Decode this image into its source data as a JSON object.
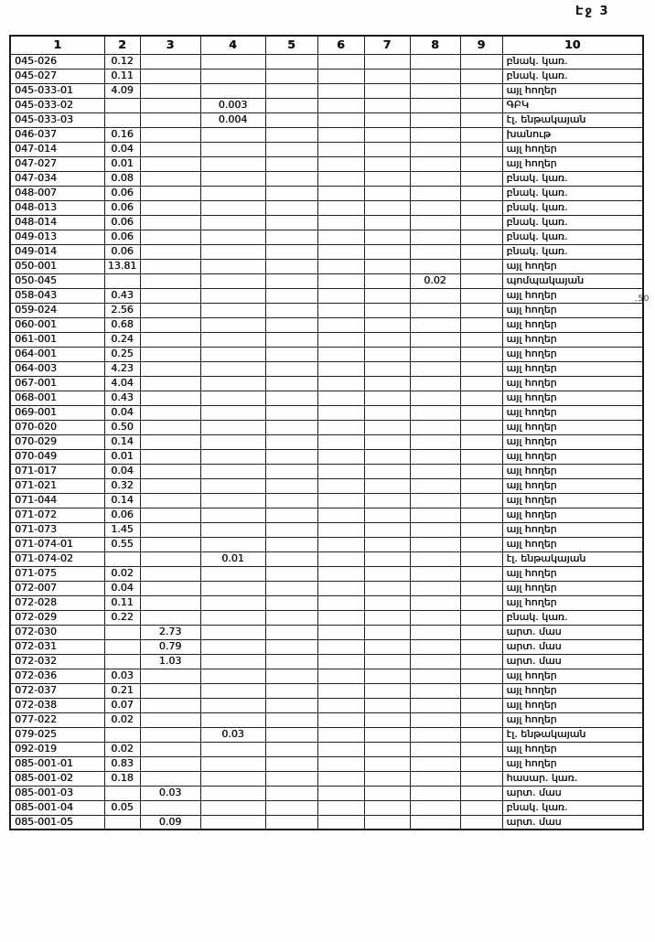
{
  "page": {
    "header": "Էջ 3",
    "margin_note": ".50"
  },
  "table": {
    "columns": [
      "1",
      "2",
      "3",
      "4",
      "5",
      "6",
      "7",
      "8",
      "9",
      "10"
    ],
    "rows": [
      [
        "045-026",
        "0.12",
        "",
        "",
        "",
        "",
        "",
        "",
        "",
        "բնակ. կառ."
      ],
      [
        "045-027",
        "0.11",
        "",
        "",
        "",
        "",
        "",
        "",
        "",
        "բնակ. կառ."
      ],
      [
        "045-033-01",
        "4.09",
        "",
        "",
        "",
        "",
        "",
        "",
        "",
        "այլ հողեր"
      ],
      [
        "045-033-02",
        "",
        "",
        "0.003",
        "",
        "",
        "",
        "",
        "",
        "ԳԲԿ"
      ],
      [
        "045-033-03",
        "",
        "",
        "0.004",
        "",
        "",
        "",
        "",
        "",
        "էլ. ենթակայան"
      ],
      [
        "046-037",
        "0.16",
        "",
        "",
        "",
        "",
        "",
        "",
        "",
        "խանութ"
      ],
      [
        "047-014",
        "0.04",
        "",
        "",
        "",
        "",
        "",
        "",
        "",
        "այլ հողեր"
      ],
      [
        "047-027",
        "0.01",
        "",
        "",
        "",
        "",
        "",
        "",
        "",
        "այլ հողեր"
      ],
      [
        "047-034",
        "0.08",
        "",
        "",
        "",
        "",
        "",
        "",
        "",
        "բնակ. կառ."
      ],
      [
        "048-007",
        "0.06",
        "",
        "",
        "",
        "",
        "",
        "",
        "",
        "բնակ. կառ."
      ],
      [
        "048-013",
        "0.06",
        "",
        "",
        "",
        "",
        "",
        "",
        "",
        "բնակ. կառ."
      ],
      [
        "048-014",
        "0.06",
        "",
        "",
        "",
        "",
        "",
        "",
        "",
        "բնակ. կառ."
      ],
      [
        "049-013",
        "0.06",
        "",
        "",
        "",
        "",
        "",
        "",
        "",
        "բնակ. կառ."
      ],
      [
        "049-014",
        "0.06",
        "",
        "",
        "",
        "",
        "",
        "",
        "",
        "բնակ. կառ."
      ],
      [
        "050-001",
        "13.81",
        "",
        "",
        "",
        "",
        "",
        "",
        "",
        "այլ հողեր"
      ],
      [
        "050-045",
        "",
        "",
        "",
        "",
        "",
        "",
        "0.02",
        "",
        "պոմպակայան"
      ],
      [
        "058-043",
        "0.43",
        "",
        "",
        "",
        "",
        "",
        "",
        "",
        "այլ հողեր"
      ],
      [
        "059-024",
        "2.56",
        "",
        "",
        "",
        "",
        "",
        "",
        "",
        "այլ հողեր"
      ],
      [
        "060-001",
        "0.68",
        "",
        "",
        "",
        "",
        "",
        "",
        "",
        "այլ հողեր"
      ],
      [
        "061-001",
        "0.24",
        "",
        "",
        "",
        "",
        "",
        "",
        "",
        "այլ հողեր"
      ],
      [
        "064-001",
        "0.25",
        "",
        "",
        "",
        "",
        "",
        "",
        "",
        "այլ հողեր"
      ],
      [
        "064-003",
        "4.23",
        "",
        "",
        "",
        "",
        "",
        "",
        "",
        "այլ հողեր"
      ],
      [
        "067-001",
        "4.04",
        "",
        "",
        "",
        "",
        "",
        "",
        "",
        "այլ հողեր"
      ],
      [
        "068-001",
        "0.43",
        "",
        "",
        "",
        "",
        "",
        "",
        "",
        "այլ հողեր"
      ],
      [
        "069-001",
        "0.04",
        "",
        "",
        "",
        "",
        "",
        "",
        "",
        "այլ հողեր"
      ],
      [
        "070-020",
        "0.50",
        "",
        "",
        "",
        "",
        "",
        "",
        "",
        "այլ հողեր"
      ],
      [
        "070-029",
        "0.14",
        "",
        "",
        "",
        "",
        "",
        "",
        "",
        "այլ հողեր"
      ],
      [
        "070-049",
        "0.01",
        "",
        "",
        "",
        "",
        "",
        "",
        "",
        "այլ հողեր"
      ],
      [
        "071-017",
        "0.04",
        "",
        "",
        "",
        "",
        "",
        "",
        "",
        "այլ հողեր"
      ],
      [
        "071-021",
        "0.32",
        "",
        "",
        "",
        "",
        "",
        "",
        "",
        "այլ հողեր"
      ],
      [
        "071-044",
        "0.14",
        "",
        "",
        "",
        "",
        "",
        "",
        "",
        "այլ հողեր"
      ],
      [
        "071-072",
        "0.06",
        "",
        "",
        "",
        "",
        "",
        "",
        "",
        "այլ հողեր"
      ],
      [
        "071-073",
        "1.45",
        "",
        "",
        "",
        "",
        "",
        "",
        "",
        "այլ հողեր"
      ],
      [
        "071-074-01",
        "0.55",
        "",
        "",
        "",
        "",
        "",
        "",
        "",
        "այլ հողեր"
      ],
      [
        "071-074-02",
        "",
        "",
        "0.01",
        "",
        "",
        "",
        "",
        "",
        "էլ. ենթակայան"
      ],
      [
        "071-075",
        "0.02",
        "",
        "",
        "",
        "",
        "",
        "",
        "",
        "այլ հողեր"
      ],
      [
        "072-007",
        "0.04",
        "",
        "",
        "",
        "",
        "",
        "",
        "",
        "այլ հողեր"
      ],
      [
        "072-028",
        "0.11",
        "",
        "",
        "",
        "",
        "",
        "",
        "",
        "այլ հողեր"
      ],
      [
        "072-029",
        "0.22",
        "",
        "",
        "",
        "",
        "",
        "",
        "",
        "բնակ. կառ."
      ],
      [
        "072-030",
        "",
        "2.73",
        "",
        "",
        "",
        "",
        "",
        "",
        "արտ. մաս"
      ],
      [
        "072-031",
        "",
        "0.79",
        "",
        "",
        "",
        "",
        "",
        "",
        "արտ. մաս"
      ],
      [
        "072-032",
        "",
        "1.03",
        "",
        "",
        "",
        "",
        "",
        "",
        "արտ. մաս"
      ],
      [
        "072-036",
        "0.03",
        "",
        "",
        "",
        "",
        "",
        "",
        "",
        "այլ հողեր"
      ],
      [
        "072-037",
        "0.21",
        "",
        "",
        "",
        "",
        "",
        "",
        "",
        "այլ հողեր"
      ],
      [
        "072-038",
        "0.07",
        "",
        "",
        "",
        "",
        "",
        "",
        "",
        "այլ հողեր"
      ],
      [
        "077-022",
        "0.02",
        "",
        "",
        "",
        "",
        "",
        "",
        "",
        "այլ հողեր"
      ],
      [
        "079-025",
        "",
        "",
        "0.03",
        "",
        "",
        "",
        "",
        "",
        "էլ. ենթակայան"
      ],
      [
        "092-019",
        "0.02",
        "",
        "",
        "",
        "",
        "",
        "",
        "",
        "այլ հողեր"
      ],
      [
        "085-001-01",
        "0.83",
        "",
        "",
        "",
        "",
        "",
        "",
        "",
        "այլ հողեր"
      ],
      [
        "085-001-02",
        "0.18",
        "",
        "",
        "",
        "",
        "",
        "",
        "",
        "հասար. կառ."
      ],
      [
        "085-001-03",
        "",
        "0.03",
        "",
        "",
        "",
        "",
        "",
        "",
        "արտ. մաս"
      ],
      [
        "085-001-04",
        "0.05",
        "",
        "",
        "",
        "",
        "",
        "",
        "",
        "բնակ. կառ."
      ],
      [
        "085-001-05",
        "",
        "0.09",
        "",
        "",
        "",
        "",
        "",
        "",
        "արտ. մաս"
      ]
    ]
  }
}
